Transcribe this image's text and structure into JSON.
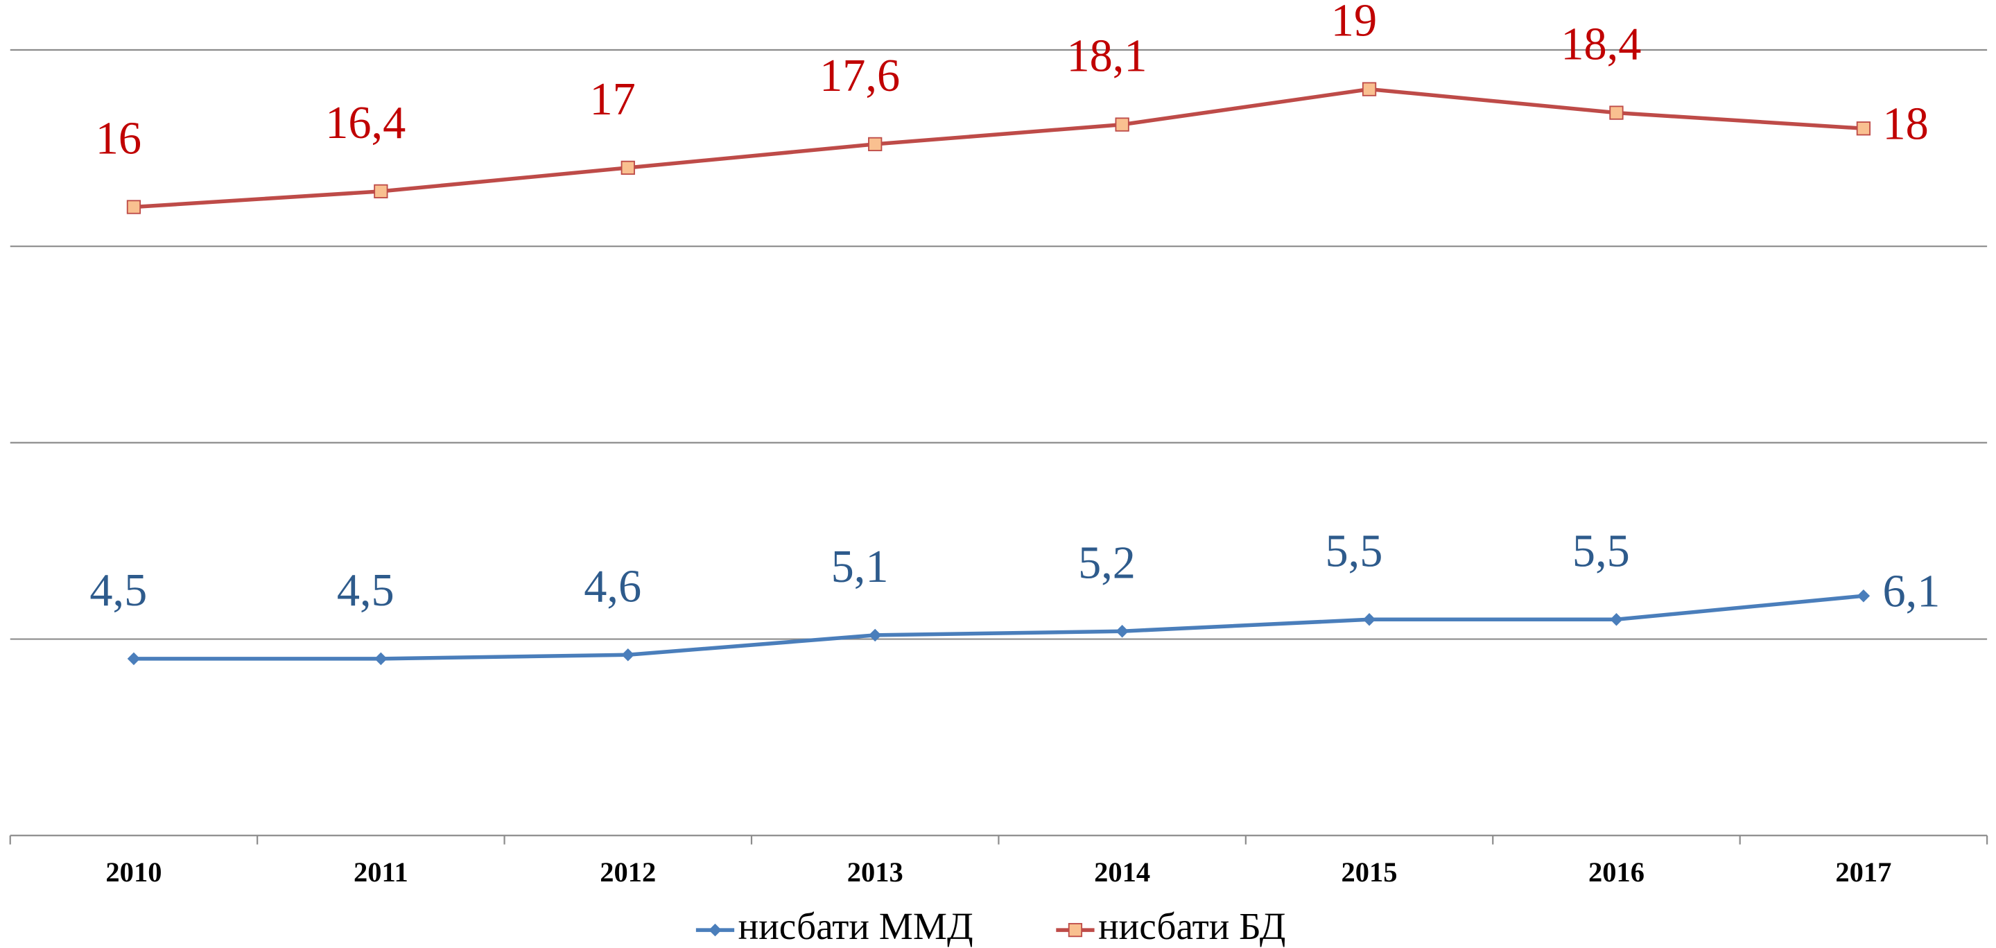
{
  "chart_data": {
    "type": "line",
    "categories": [
      "2010",
      "2011",
      "2012",
      "2013",
      "2014",
      "2015",
      "2016",
      "2017"
    ],
    "series": [
      {
        "name": "нисбати ММД",
        "color": "#4a7ebb",
        "label_color": "#2e5b8c",
        "marker": "diamond",
        "values": [
          4.5,
          4.5,
          4.6,
          5.1,
          5.2,
          5.5,
          5.5,
          6.1
        ],
        "value_labels": [
          "4,5",
          "4,5",
          "4,6",
          "5,1",
          "5,2",
          "5,5",
          "5,5",
          "6,1"
        ]
      },
      {
        "name": "нисбати БД",
        "color": "#be4b48",
        "label_color": "#c00000",
        "marker": "square",
        "marker_fill": "#f9c090",
        "values": [
          16,
          16.4,
          17,
          17.6,
          18.1,
          19,
          18.4,
          18
        ],
        "value_labels": [
          "16",
          "16,4",
          "17",
          "17,6",
          "18,1",
          "19",
          "18,4",
          "18"
        ]
      }
    ],
    "ylim": [
      0,
      20
    ],
    "yticks": [
      0,
      5,
      10,
      15,
      20
    ],
    "grid": true,
    "legend": "bottom"
  }
}
